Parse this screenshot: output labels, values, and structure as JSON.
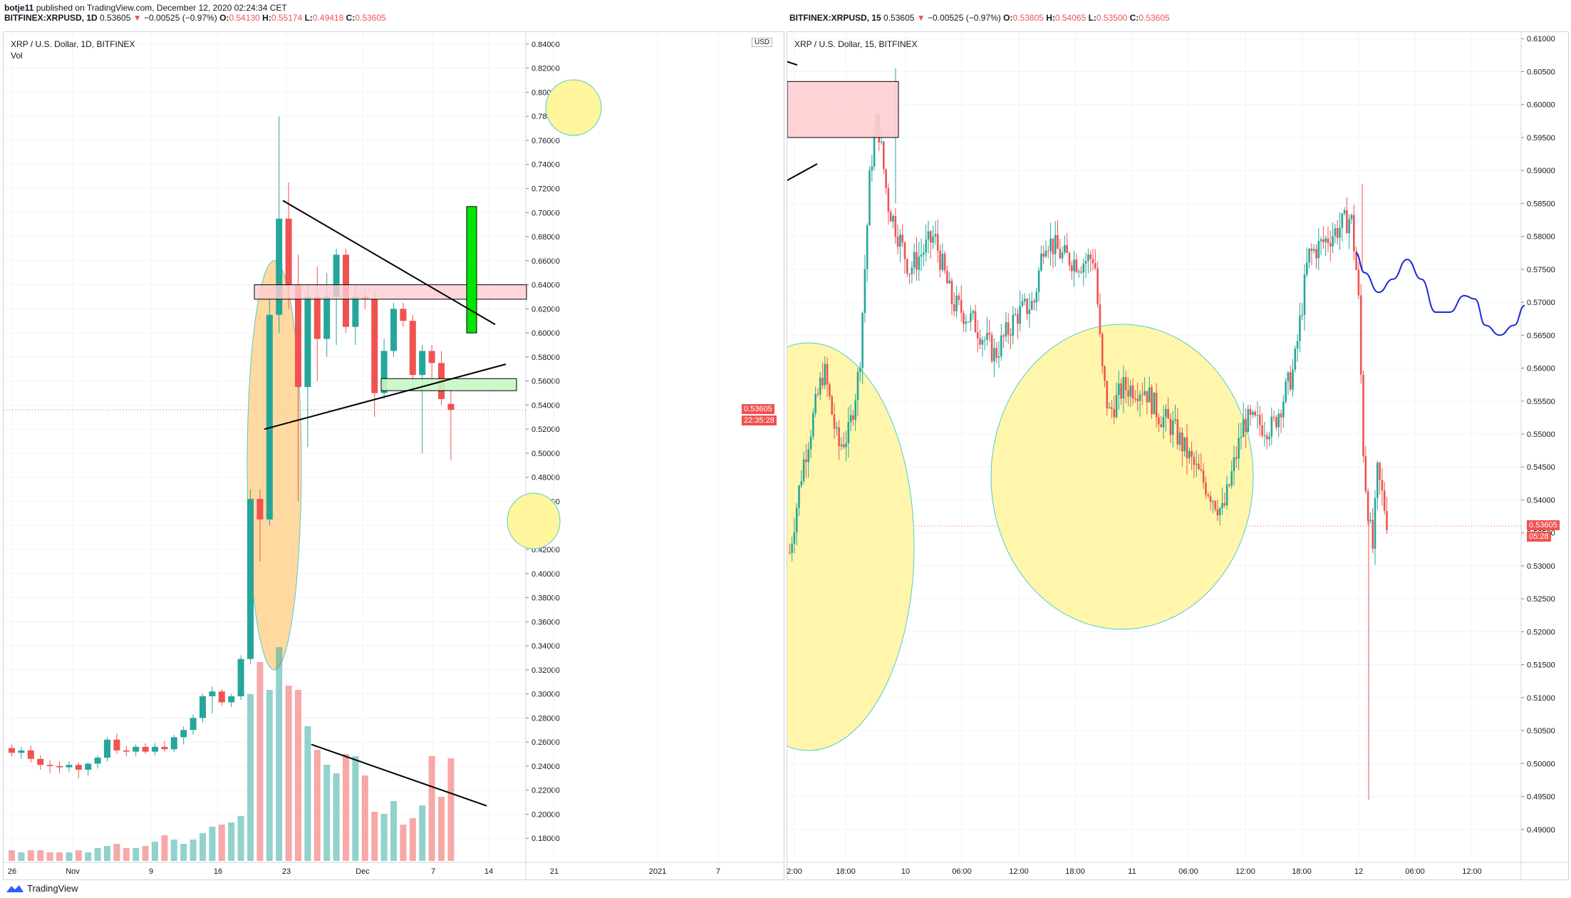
{
  "header": {
    "publisher": "botje11",
    "published_text": "published on TradingView.com, December 12, 2020 02:24:34 CET",
    "left_symbol_line": {
      "symbol": "BITFINEX:XRPUSD, 1D",
      "last": "0.53605",
      "change": "−0.00525 (−0.97%)",
      "o_label": "O:",
      "o": "0.54130",
      "h_label": "H:",
      "h": "0.55174",
      "l_label": "L:",
      "l": "0.49418",
      "c_label": "C:",
      "c": "0.53605"
    },
    "right_symbol_line": {
      "symbol": "BITFINEX:XRPUSD, 15",
      "last": "0.53605",
      "change": "−0.00525 (−0.97%)",
      "o_label": "O:",
      "o": "0.53805",
      "h_label": "H:",
      "h": "0.54065",
      "l_label": "L:",
      "l": "0.53500",
      "c_label": "C:",
      "c": "0.53605"
    }
  },
  "footer": {
    "brand": "TradingView"
  },
  "colors": {
    "up": "#26a69a",
    "down": "#ef5350",
    "grid": "#f0f3fa",
    "highlight_yellow": "#fff59d",
    "highlight_orange": "#ffcc80",
    "green_bar": "#00e600"
  },
  "chart_data": [
    {
      "type": "candlestick",
      "title": "XRP / U.S. Dollar, 1D, BITFINEX",
      "indicator": "Vol",
      "currency_badge": "USD",
      "last_price_label": "0.53605",
      "countdown_label": "22:35:28",
      "ylim": [
        0.16,
        0.85
      ],
      "y_ticks": [
        "0.84000",
        "0.82000",
        "0.80000",
        "0.78000",
        "0.76000",
        "0.74000",
        "0.72000",
        "0.70000",
        "0.68000",
        "0.66000",
        "0.64000",
        "0.62000",
        "0.60000",
        "0.58000",
        "0.56000",
        "0.54000",
        "0.52000",
        "0.50000",
        "0.48000",
        "0.46000",
        "0.44000",
        "0.42000",
        "0.40000",
        "0.38000",
        "0.36000",
        "0.34000",
        "0.32000",
        "0.30000",
        "0.28000",
        "0.26000",
        "0.24000",
        "0.22000",
        "0.20000",
        "0.18000"
      ],
      "x_ticks": [
        "26",
        "Nov",
        "9",
        "16",
        "23",
        "Dec",
        "7",
        "14",
        "21",
        "2021",
        "7"
      ],
      "candles": [
        {
          "o": 0.255,
          "h": 0.258,
          "l": 0.248,
          "c": 0.251
        },
        {
          "o": 0.251,
          "h": 0.256,
          "l": 0.246,
          "c": 0.253
        },
        {
          "o": 0.253,
          "h": 0.257,
          "l": 0.243,
          "c": 0.246
        },
        {
          "o": 0.246,
          "h": 0.249,
          "l": 0.237,
          "c": 0.241
        },
        {
          "o": 0.241,
          "h": 0.245,
          "l": 0.234,
          "c": 0.24
        },
        {
          "o": 0.24,
          "h": 0.244,
          "l": 0.234,
          "c": 0.239
        },
        {
          "o": 0.239,
          "h": 0.244,
          "l": 0.235,
          "c": 0.241
        },
        {
          "o": 0.241,
          "h": 0.243,
          "l": 0.23,
          "c": 0.237
        },
        {
          "o": 0.237,
          "h": 0.243,
          "l": 0.232,
          "c": 0.242
        },
        {
          "o": 0.242,
          "h": 0.249,
          "l": 0.238,
          "c": 0.247
        },
        {
          "o": 0.247,
          "h": 0.264,
          "l": 0.244,
          "c": 0.262
        },
        {
          "o": 0.262,
          "h": 0.267,
          "l": 0.25,
          "c": 0.253
        },
        {
          "o": 0.253,
          "h": 0.257,
          "l": 0.248,
          "c": 0.252
        },
        {
          "o": 0.252,
          "h": 0.258,
          "l": 0.248,
          "c": 0.256
        },
        {
          "o": 0.256,
          "h": 0.259,
          "l": 0.25,
          "c": 0.252
        },
        {
          "o": 0.252,
          "h": 0.259,
          "l": 0.249,
          "c": 0.256
        },
        {
          "o": 0.256,
          "h": 0.261,
          "l": 0.252,
          "c": 0.254
        },
        {
          "o": 0.254,
          "h": 0.266,
          "l": 0.252,
          "c": 0.264
        },
        {
          "o": 0.264,
          "h": 0.273,
          "l": 0.258,
          "c": 0.27
        },
        {
          "o": 0.27,
          "h": 0.283,
          "l": 0.266,
          "c": 0.28
        },
        {
          "o": 0.28,
          "h": 0.3,
          "l": 0.276,
          "c": 0.298
        },
        {
          "o": 0.298,
          "h": 0.306,
          "l": 0.284,
          "c": 0.302
        },
        {
          "o": 0.302,
          "h": 0.304,
          "l": 0.29,
          "c": 0.293
        },
        {
          "o": 0.293,
          "h": 0.3,
          "l": 0.289,
          "c": 0.298
        },
        {
          "o": 0.298,
          "h": 0.332,
          "l": 0.295,
          "c": 0.329
        },
        {
          "o": 0.329,
          "h": 0.47,
          "l": 0.325,
          "c": 0.462
        },
        {
          "o": 0.462,
          "h": 0.47,
          "l": 0.41,
          "c": 0.445
        },
        {
          "o": 0.445,
          "h": 0.63,
          "l": 0.44,
          "c": 0.615
        },
        {
          "o": 0.615,
          "h": 0.78,
          "l": 0.6,
          "c": 0.695
        },
        {
          "o": 0.695,
          "h": 0.725,
          "l": 0.62,
          "c": 0.64
        },
        {
          "o": 0.64,
          "h": 0.665,
          "l": 0.46,
          "c": 0.555
        },
        {
          "o": 0.555,
          "h": 0.64,
          "l": 0.505,
          "c": 0.63
        },
        {
          "o": 0.63,
          "h": 0.655,
          "l": 0.56,
          "c": 0.595
        },
        {
          "o": 0.595,
          "h": 0.65,
          "l": 0.58,
          "c": 0.63
        },
        {
          "o": 0.63,
          "h": 0.67,
          "l": 0.59,
          "c": 0.665
        },
        {
          "o": 0.665,
          "h": 0.67,
          "l": 0.6,
          "c": 0.605
        },
        {
          "o": 0.605,
          "h": 0.64,
          "l": 0.59,
          "c": 0.63
        },
        {
          "o": 0.63,
          "h": 0.635,
          "l": 0.62,
          "c": 0.628
        },
        {
          "o": 0.628,
          "h": 0.635,
          "l": 0.53,
          "c": 0.55
        },
        {
          "o": 0.55,
          "h": 0.595,
          "l": 0.545,
          "c": 0.585
        },
        {
          "o": 0.585,
          "h": 0.625,
          "l": 0.58,
          "c": 0.62
        },
        {
          "o": 0.62,
          "h": 0.625,
          "l": 0.605,
          "c": 0.61
        },
        {
          "o": 0.61,
          "h": 0.615,
          "l": 0.555,
          "c": 0.565
        },
        {
          "o": 0.565,
          "h": 0.59,
          "l": 0.5,
          "c": 0.585
        },
        {
          "o": 0.585,
          "h": 0.59,
          "l": 0.56,
          "c": 0.575
        },
        {
          "o": 0.575,
          "h": 0.585,
          "l": 0.54,
          "c": 0.545
        },
        {
          "o": 0.541,
          "h": 0.552,
          "l": 0.494,
          "c": 0.536
        }
      ],
      "volume_relative": [
        0.05,
        0.04,
        0.05,
        0.05,
        0.04,
        0.04,
        0.04,
        0.05,
        0.04,
        0.06,
        0.07,
        0.08,
        0.06,
        0.06,
        0.07,
        0.09,
        0.12,
        0.1,
        0.08,
        0.1,
        0.13,
        0.16,
        0.17,
        0.18,
        0.21,
        0.78,
        0.93,
        0.8,
        1.0,
        0.82,
        0.8,
        0.63,
        0.52,
        0.45,
        0.41,
        0.5,
        0.49,
        0.4,
        0.23,
        0.22,
        0.28,
        0.17,
        0.2,
        0.26,
        0.49,
        0.3,
        0.48
      ],
      "annotations": {
        "resistance_box": [
          0.628,
          0.64
        ],
        "support_box": [
          0.552,
          0.562
        ],
        "projection_bar": [
          0.6,
          0.705
        ]
      }
    },
    {
      "type": "candlestick",
      "title": "XRP / U.S. Dollar, 15, BITFINEX",
      "last_price_label": "0.53605",
      "countdown_label": "05:28",
      "ylim": [
        0.485,
        0.611
      ],
      "y_ticks": [
        "0.61000",
        "0.60500",
        "0.60000",
        "0.59500",
        "0.59000",
        "0.58500",
        "0.58000",
        "0.57500",
        "0.57000",
        "0.56500",
        "0.56000",
        "0.55500",
        "0.55000",
        "0.54500",
        "0.54000",
        "0.53500",
        "0.53000",
        "0.52500",
        "0.52000",
        "0.51500",
        "0.51000",
        "0.50500",
        "0.50000",
        "0.49500",
        "0.49000"
      ],
      "x_ticks": [
        "2:00",
        "18:00",
        "10",
        "06:00",
        "12:00",
        "18:00",
        "11",
        "06:00",
        "12:00",
        "18:00",
        "12",
        "06:00",
        "12:00"
      ],
      "annotations": {
        "resistance_box": [
          0.595,
          0.6035
        ],
        "projection_path_start": 0.5775
      }
    }
  ]
}
